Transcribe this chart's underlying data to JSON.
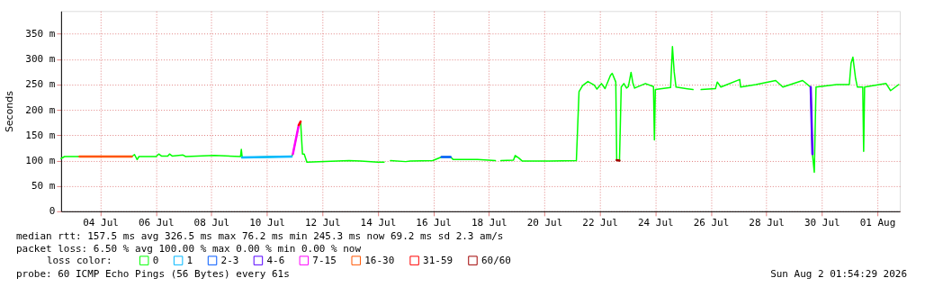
{
  "chart_data": {
    "type": "line",
    "ylabel": "Seconds",
    "xlim": [
      "2026-07-02T14:00",
      "2026-08-01T19:30"
    ],
    "xticks": [
      {
        "value": "2026-07-04",
        "label": "04 Jul"
      },
      {
        "value": "2026-07-06",
        "label": "06 Jul"
      },
      {
        "value": "2026-07-08",
        "label": "08 Jul"
      },
      {
        "value": "2026-07-10",
        "label": "10 Jul"
      },
      {
        "value": "2026-07-12",
        "label": "12 Jul"
      },
      {
        "value": "2026-07-14",
        "label": "14 Jul"
      },
      {
        "value": "2026-07-16",
        "label": "16 Jul"
      },
      {
        "value": "2026-07-18",
        "label": "18 Jul"
      },
      {
        "value": "2026-07-20",
        "label": "20 Jul"
      },
      {
        "value": "2026-07-22",
        "label": "22 Jul"
      },
      {
        "value": "2026-07-24",
        "label": "24 Jul"
      },
      {
        "value": "2026-07-26",
        "label": "26 Jul"
      },
      {
        "value": "2026-07-28",
        "label": "28 Jul"
      },
      {
        "value": "2026-07-30",
        "label": "30 Jul"
      },
      {
        "value": "2026-08-01",
        "label": "01 Aug"
      }
    ],
    "ylim": [
      0,
      395
    ],
    "yticks": [
      0,
      {
        "value": 50,
        "label": "50 m"
      },
      {
        "value": 100,
        "label": "100 m"
      },
      {
        "value": 150,
        "label": "150 m"
      },
      {
        "value": 200,
        "label": "200 m"
      },
      {
        "value": 250,
        "label": "250 m"
      },
      {
        "value": 300,
        "label": "300 m"
      },
      {
        "value": 350,
        "label": "350 m"
      }
    ],
    "grid": true,
    "legend": "bottom",
    "legend_title": "loss color:",
    "marker": "none",
    "line_style": "solid",
    "annotations": [
      "median rtt:  157.5 ms avg  326.5 ms max  76.2 ms min  245.3 ms now  69.2 ms sd  2.3   am/s",
      "packet loss: 6.50 % avg  100.00 % max  0.00 % min  0.00 % now",
      "probe:       60 ICMP Echo Pings (56 Bytes) every 61s",
      "Sun Aug  2 01:54:29 2026"
    ],
    "series": [
      {
        "name": "0",
        "color": "#00ff00",
        "x": [
          "2026-07-02T14:00",
          "2026-07-02T17:00",
          "2026-07-05T03:12",
          "2026-07-05T05:30",
          "2026-07-05T07:48",
          "2026-07-05T09:24",
          "2026-07-06T00:12",
          "2026-07-06T02:30",
          "2026-07-06T04:48",
          "2026-07-06T10:18",
          "2026-07-06T11:48",
          "2026-07-06T14:06",
          "2026-07-06T23:30",
          "2026-07-07T01:48",
          "2026-07-08T02:36",
          "2026-07-09T01:12",
          "2026-07-09T01:54",
          "2026-07-09T02:42",
          "2026-07-10T21:24",
          "2026-07-10T22:30",
          "2026-07-11T03:36",
          "2026-07-11T05:12",
          "2026-07-11T06:48",
          "2026-07-11T08:18",
          "2026-07-11T10:36",
          "2026-07-12T23:06",
          "2026-07-13T09:12",
          "2026-07-14T00:00",
          "2026-07-14T05:24",
          "2026-07-14T08:00",
          "2026-07-14T10:54",
          "2026-07-15T00:06",
          "2026-07-15T04:00",
          "2026-07-15T23:24",
          "2026-07-16T07:06",
          "2026-07-16T14:54",
          "2026-07-16T17:12",
          "2026-07-17T14:12",
          "2026-07-18T05:42",
          "2026-07-18T07:48",
          "2026-07-18T10:24",
          "2026-07-18T21:18",
          "2026-07-18T22:48",
          "2026-07-19T01:54",
          "2026-07-19T05:00",
          "2026-07-20T04:24",
          "2026-07-21T03:42",
          "2026-07-21T06:00",
          "2026-07-21T09:06",
          "2026-07-21T13:42",
          "2026-07-21T19:12",
          "2026-07-21T21:30",
          "2026-07-22T01:24",
          "2026-07-22T04:30",
          "2026-07-22T09:12",
          "2026-07-22T10:42",
          "2026-07-22T13:48",
          "2026-07-22T14:36",
          "2026-07-22T17:00",
          "2026-07-22T18:30",
          "2026-07-22T20:48",
          "2026-07-22T23:06",
          "2026-07-23T00:42",
          "2026-07-23T03:00",
          "2026-07-23T04:36",
          "2026-07-23T06:06",
          "2026-07-23T15:24",
          "2026-07-23T22:24",
          "2026-07-23T23:12",
          "2026-07-24T00:00",
          "2026-07-24T13:12",
          "2026-07-24T14:48",
          "2026-07-24T16:18",
          "2026-07-24T17:54",
          "2026-07-25T08:36",
          "2026-07-25T12:00",
          "2026-07-25T15:36",
          "2026-07-26T04:00",
          "2026-07-26T05:36",
          "2026-07-26T08:42",
          "2026-07-27T01:00",
          "2026-07-27T01:48",
          "2026-07-27T15:00",
          "2026-07-28T08:06",
          "2026-07-28T14:18",
          "2026-07-29T07:24",
          "2026-07-29T14:24",
          "2026-07-29T15:54",
          "2026-07-29T17:30",
          "2026-07-29T19:00",
          "2026-07-30T12:54",
          "2026-07-30T23:48",
          "2026-07-31T01:18",
          "2026-07-31T02:54",
          "2026-07-31T05:12",
          "2026-07-31T06:48",
          "2026-07-31T11:24",
          "2026-07-31T12:12",
          "2026-07-31T13:00",
          "2026-08-01T07:36",
          "2026-08-01T11:30",
          "2026-08-01T18:30"
        ],
        "values": [
          104,
          108,
          108,
          112,
          102,
          108,
          108,
          113,
          109,
          109,
          113,
          109,
          111,
          108,
          110,
          108,
          122,
          106,
          108,
          113,
          170,
          177,
          113,
          113,
          97,
          100,
          99,
          97,
          97,
          null,
          100,
          98,
          99,
          100,
          107,
          107,
          102,
          102,
          100,
          null,
          100,
          101,
          110,
          105,
          99,
          99,
          100,
          236,
          248,
          256,
          249,
          241,
          252,
          242,
          268,
          272,
          255,
          101,
          100,
          245,
          252,
          243,
          246,
          274,
          253,
          243,
          252,
          246,
          141,
          240,
          244,
          325,
          275,
          245,
          240,
          null,
          240,
          242,
          255,
          245,
          260,
          245,
          250,
          258,
          245,
          258,
          245,
          113,
          77,
          245,
          250,
          250,
          292,
          304,
          262,
          245,
          245,
          118,
          245,
          252,
          238,
          250
        ]
      },
      {
        "name": "1",
        "color": "#00b8ff",
        "x": [
          "2026-07-09T02:42",
          "2026-07-10T21:24"
        ],
        "values": [
          106,
          108
        ]
      },
      {
        "name": "2-3",
        "color": "#0059ff",
        "x": [
          "2026-07-16T07:06",
          "2026-07-16T14:54"
        ],
        "values": [
          107,
          107
        ]
      },
      {
        "name": "4-6",
        "color": "#5500ff",
        "x": [
          "2026-07-29T14:24",
          "2026-07-29T15:54"
        ],
        "values": [
          245,
          113
        ]
      },
      {
        "name": "7-15",
        "color": "#ff00fe",
        "x": [
          "2026-07-10T22:30",
          "2026-07-11T03:36"
        ],
        "values": [
          113,
          170
        ]
      },
      {
        "name": "16-30",
        "color": "#ff5500",
        "x": [
          "2026-07-03T06:00",
          "2026-07-05T03:12"
        ],
        "values": [
          108,
          108
        ]
      },
      {
        "name": "31-59",
        "color": "#ff0000",
        "x": [
          "2026-07-11T03:36",
          "2026-07-11T05:12"
        ],
        "values": [
          170,
          177
        ]
      },
      {
        "name": "60/60",
        "color": "#a10000",
        "x": [
          "2026-07-22T14:36",
          "2026-07-22T17:00"
        ],
        "values": [
          101,
          100
        ]
      }
    ]
  }
}
